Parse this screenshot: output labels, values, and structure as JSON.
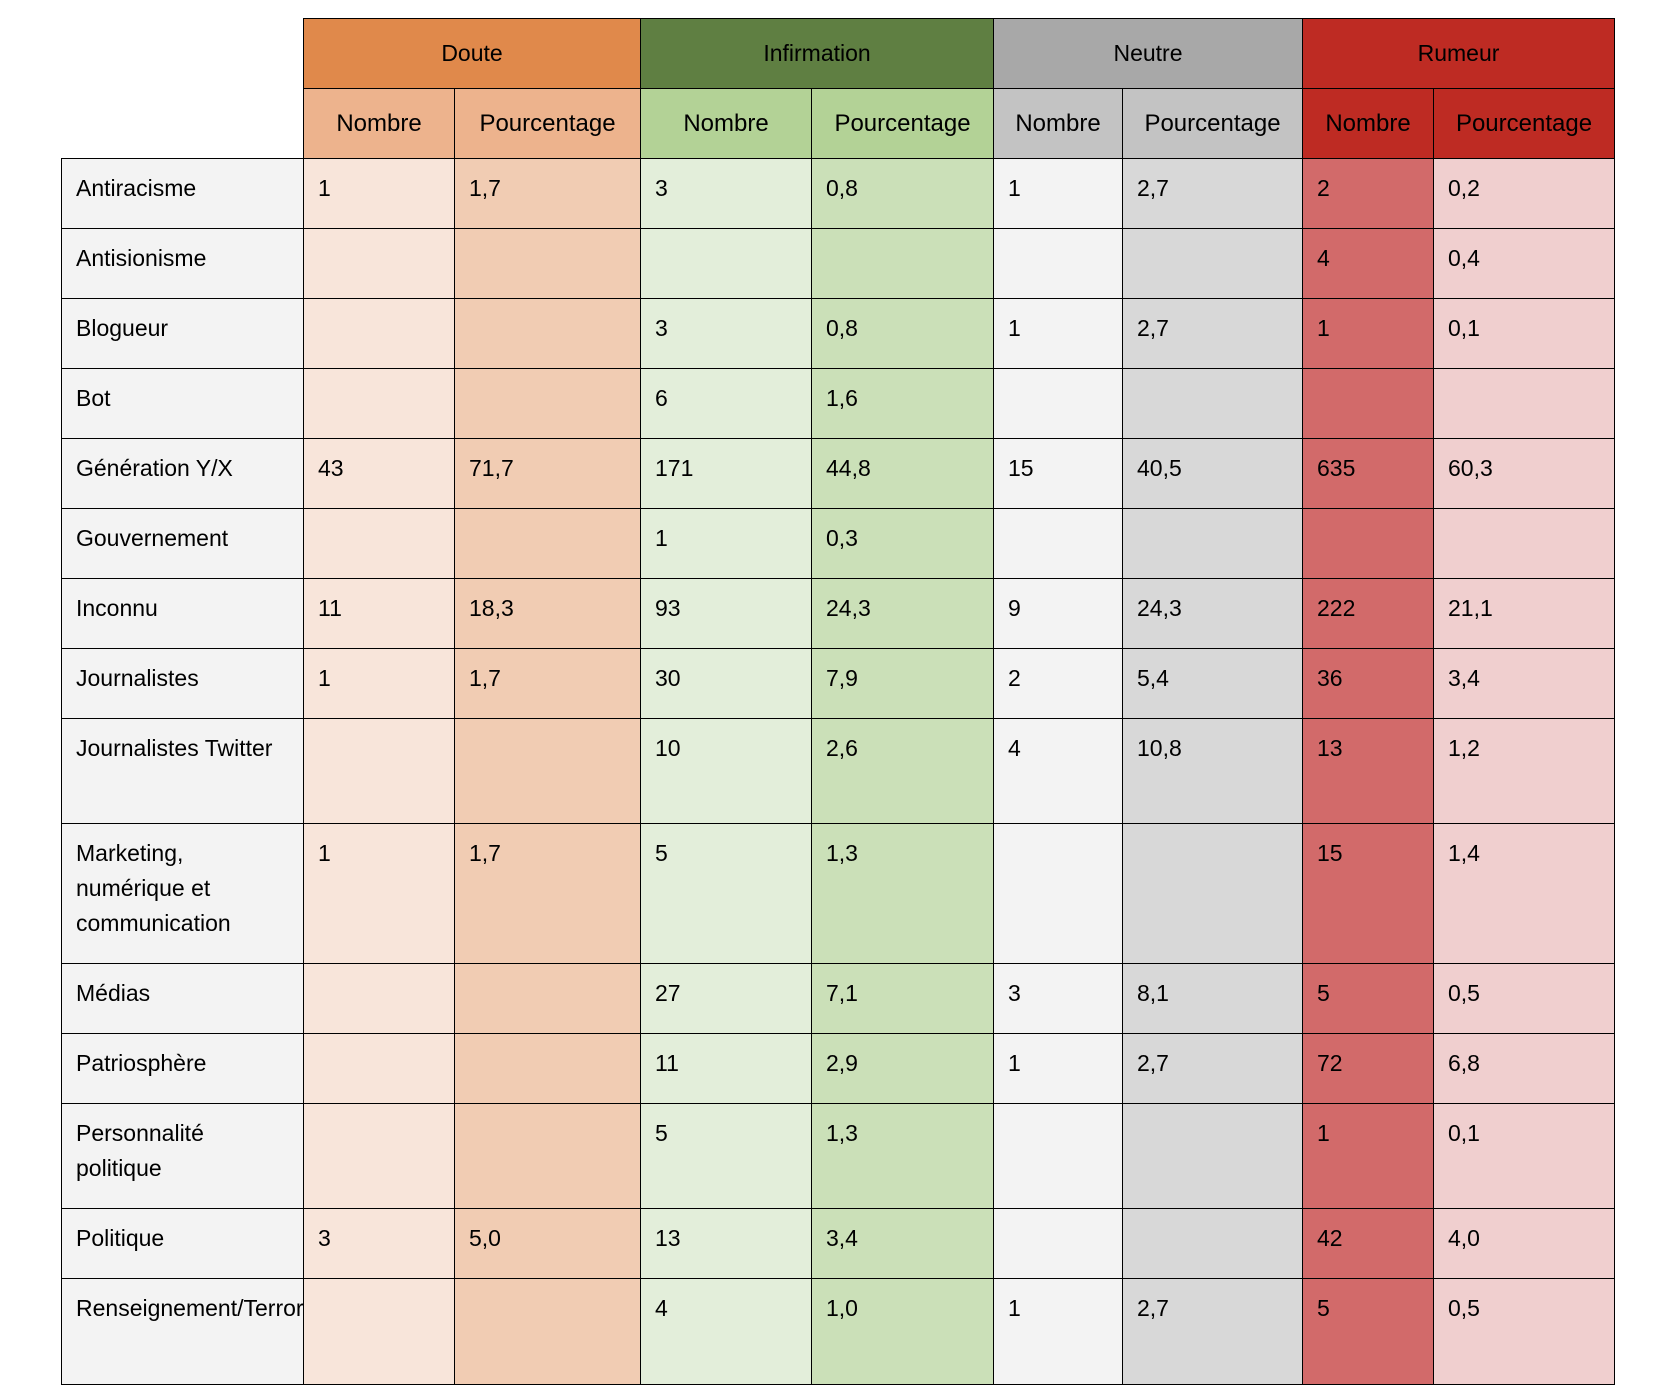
{
  "chart_data": {
    "type": "table",
    "groups": [
      {
        "name": "Doute",
        "color": "#E0894B"
      },
      {
        "name": "Infirmation",
        "color": "#5F7F42"
      },
      {
        "name": "Neutre",
        "color": "#A8A8A8"
      },
      {
        "name": "Rumeur",
        "color": "#BE2B23"
      }
    ],
    "subheaders": [
      "Nombre",
      "Pourcentage"
    ],
    "subheader_colors": [
      "#EDB38D",
      "#EDB38D",
      "#B3D296",
      "#B3D296",
      "#C3C3C3",
      "#C3C3C3",
      "#BE2B23",
      "#BE2B23"
    ],
    "column_colors": [
      "#F8E5DA",
      "#F1CCB3",
      "#E3EEDA",
      "#CBE0B8",
      "#F3F3F3",
      "#D8D8D8",
      "#D26A6A",
      "#F0CFCF"
    ],
    "label_color": "#F3F3F3",
    "rows": [
      {
        "label": "Antiracisme",
        "values": [
          "1",
          "1,7",
          "3",
          "0,8",
          "1",
          "2,7",
          "2",
          "0,2"
        ]
      },
      {
        "label": "Antisionisme",
        "values": [
          "",
          "",
          "",
          "",
          "",
          "",
          "4",
          "0,4"
        ]
      },
      {
        "label": "Blogueur",
        "values": [
          "",
          "",
          "3",
          "0,8",
          "1",
          "2,7",
          "1",
          "0,1"
        ]
      },
      {
        "label": "Bot",
        "values": [
          "",
          "",
          "6",
          "1,6",
          "",
          "",
          "",
          ""
        ]
      },
      {
        "label": "Génération Y/X",
        "values": [
          "43",
          "71,7",
          "171",
          "44,8",
          "15",
          "40,5",
          "635",
          "60,3"
        ]
      },
      {
        "label": "Gouvernement",
        "values": [
          "",
          "",
          "1",
          "0,3",
          "",
          "",
          "",
          ""
        ]
      },
      {
        "label": "Inconnu",
        "values": [
          "11",
          "18,3",
          "93",
          "24,3",
          "9",
          "24,3",
          "222",
          "21,1"
        ]
      },
      {
        "label": "Journalistes",
        "values": [
          "1",
          "1,7",
          "30",
          "7,9",
          "2",
          "5,4",
          "36",
          "3,4"
        ]
      },
      {
        "label": "Journalistes Twitter",
        "values": [
          "",
          "",
          "10",
          "2,6",
          "4",
          "10,8",
          "13",
          "1,2"
        ]
      },
      {
        "label": "Marketing, numérique et communication",
        "values": [
          "1",
          "1,7",
          "5",
          "1,3",
          "",
          "",
          "15",
          "1,4"
        ]
      },
      {
        "label": "Médias",
        "values": [
          "",
          "",
          "27",
          "7,1",
          "3",
          "8,1",
          "5",
          "0,5"
        ]
      },
      {
        "label": "Patriosphère",
        "values": [
          "",
          "",
          "11",
          "2,9",
          "1",
          "2,7",
          "72",
          "6,8"
        ]
      },
      {
        "label": "Personnalité politique",
        "values": [
          "",
          "",
          "5",
          "1,3",
          "",
          "",
          "1",
          "0,1"
        ]
      },
      {
        "label": "Politique",
        "values": [
          "3",
          "5,0",
          "13",
          "3,4",
          "",
          "",
          "42",
          "4,0"
        ]
      },
      {
        "label": "Renseignement/Terrorisme",
        "values": [
          "",
          "",
          "4",
          "1,0",
          "1",
          "2,7",
          "5",
          "0,5"
        ]
      }
    ]
  }
}
